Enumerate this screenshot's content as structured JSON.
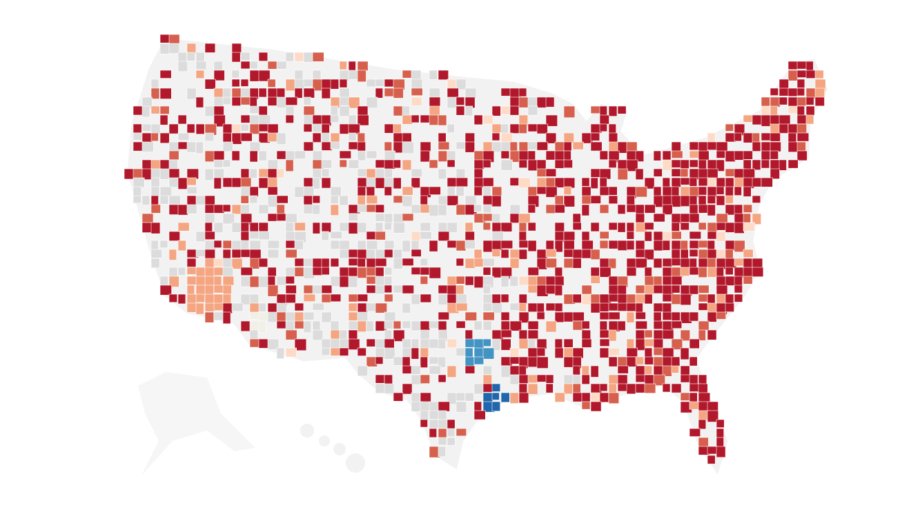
{
  "map": {
    "base_color": "#f2f2f2",
    "border_color": "#ffffff",
    "fill_colors": [
      "#dcdcdc",
      "#b2182b",
      "#d6604d",
      "#f4a582",
      "#fddbc7",
      "#f0f0e6",
      "#4393c3",
      "#2166ac"
    ]
  }
}
